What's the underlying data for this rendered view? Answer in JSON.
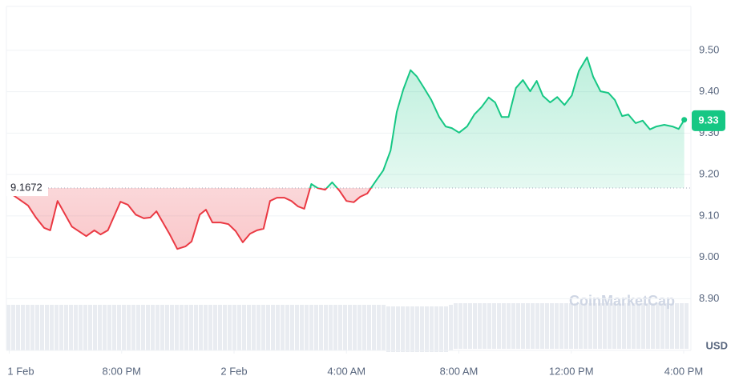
{
  "chart_data": {
    "type": "line",
    "x": [
      16.1,
      16.67,
      16.95,
      17.24,
      17.46,
      17.72,
      18.23,
      18.74,
      19.03,
      19.25,
      19.51,
      19.96,
      20.22,
      20.5,
      20.79,
      21.02,
      21.24,
      21.7,
      21.98,
      22.27,
      22.49,
      22.78,
      23.0,
      23.23,
      23.52,
      23.8,
      24.06,
      24.31,
      24.57,
      24.82,
      25.05,
      25.28,
      25.53,
      25.79,
      26.04,
      26.27,
      26.5,
      26.75,
      26.98,
      27.24,
      27.49,
      27.75,
      28.0,
      28.26,
      28.49,
      28.74,
      29.03,
      29.31,
      29.57,
      29.79,
      30.02,
      30.28,
      30.5,
      30.76,
      31.02,
      31.3,
      31.53,
      31.75,
      32.01,
      32.29,
      32.55,
      32.81,
      33.06,
      33.29,
      33.52,
      33.77,
      34.03,
      34.28,
      34.54,
      34.77,
      34.99,
      35.25,
      35.5,
      35.76,
      36.02,
      36.27,
      36.56,
      36.78,
      37.04,
      37.32,
      37.55,
      37.81,
      38.03,
      38.29,
      38.54,
      38.8,
      39.03,
      39.31,
      39.6,
      39.82,
      40.02
    ],
    "values": [
      9.152,
      9.125,
      9.096,
      9.071,
      9.065,
      9.136,
      9.074,
      9.051,
      9.065,
      9.055,
      9.065,
      9.134,
      9.127,
      9.103,
      9.094,
      9.096,
      9.111,
      9.057,
      9.02,
      9.026,
      9.038,
      9.103,
      9.115,
      9.084,
      9.084,
      9.08,
      9.063,
      9.036,
      9.057,
      9.065,
      9.069,
      9.136,
      9.144,
      9.144,
      9.136,
      9.123,
      9.117,
      9.177,
      9.167,
      9.163,
      9.181,
      9.161,
      9.136,
      9.133,
      9.146,
      9.154,
      9.183,
      9.21,
      9.258,
      9.351,
      9.405,
      9.452,
      9.437,
      9.409,
      9.38,
      9.339,
      9.316,
      9.312,
      9.301,
      9.316,
      9.345,
      9.363,
      9.386,
      9.374,
      9.339,
      9.339,
      9.409,
      9.428,
      9.401,
      9.426,
      9.39,
      9.374,
      9.387,
      9.368,
      9.391,
      9.45,
      9.483,
      9.436,
      9.401,
      9.397,
      9.38,
      9.341,
      9.345,
      9.324,
      9.33,
      9.309,
      9.316,
      9.32,
      9.316,
      9.31,
      9.332
    ],
    "xlim": [
      16.1,
      40.2
    ],
    "xticks": [
      {
        "value": 16,
        "label": "1 Feb"
      },
      {
        "value": 20,
        "label": "8:00 PM"
      },
      {
        "value": 24,
        "label": "2 Feb"
      },
      {
        "value": 28,
        "label": "4:00 AM"
      },
      {
        "value": 32,
        "label": "8:00 AM"
      },
      {
        "value": 36,
        "label": "12:00 PM"
      },
      {
        "value": 40,
        "label": "4:00 PM"
      }
    ],
    "ylim": [
      8.775,
      9.606
    ],
    "yticks": [
      {
        "value": 8.9,
        "label": "8.90"
      },
      {
        "value": 9.0,
        "label": "9.00"
      },
      {
        "value": 9.1,
        "label": "9.10"
      },
      {
        "value": 9.2,
        "label": "9.20"
      },
      {
        "value": 9.3,
        "label": "9.30"
      },
      {
        "value": 9.4,
        "label": "9.40"
      },
      {
        "value": 9.5,
        "label": "9.50"
      }
    ],
    "baseline": 9.1672,
    "current_price": 9.33,
    "y_unit": "USD",
    "watermark": "CoinMarketCap",
    "up_color": "#16c784",
    "down_color": "#ea3943",
    "grid": true
  }
}
